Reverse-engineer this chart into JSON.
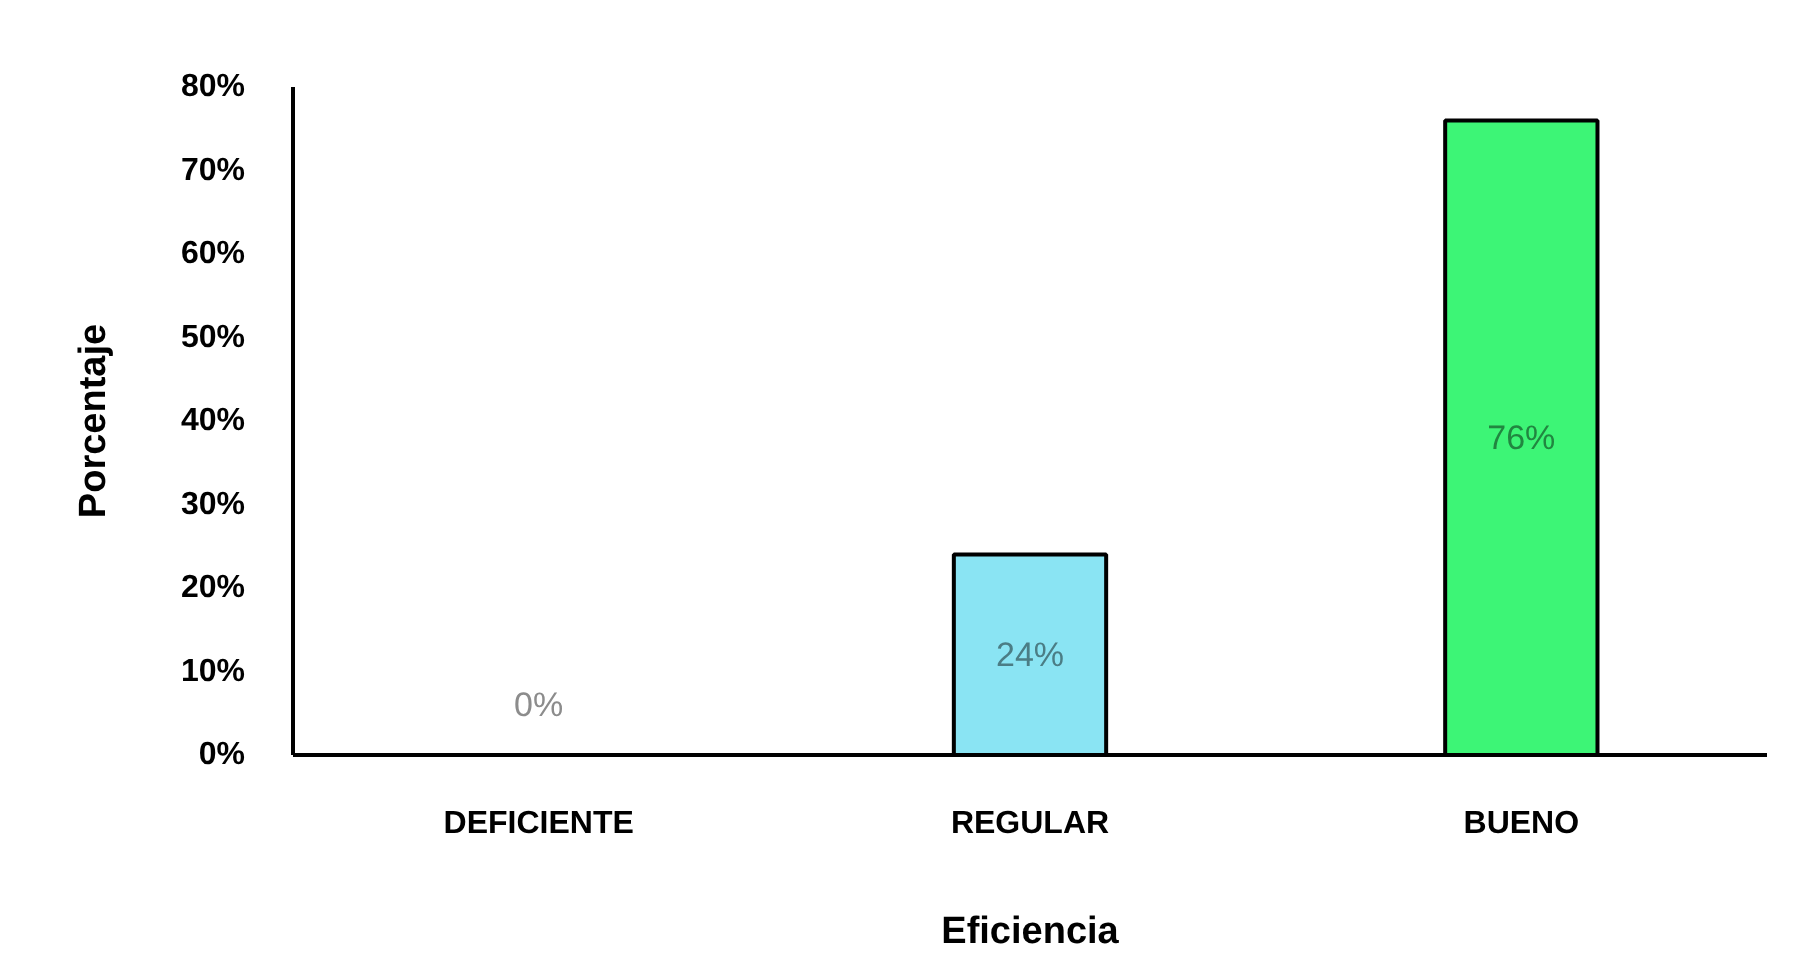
{
  "chart_data": {
    "type": "bar",
    "xlabel": "Eficiencia",
    "ylabel": "Porcentaje",
    "categories": [
      "DEFICIENTE",
      "REGULAR",
      "BUENO"
    ],
    "values": [
      0,
      24,
      76
    ],
    "colors": [
      null,
      "#8ae4f3",
      "#3df576"
    ],
    "value_labels": [
      "0%",
      "24%",
      "76%"
    ],
    "ylim": [
      0,
      80
    ],
    "yticks": [
      {
        "value": 0,
        "label": "0%"
      },
      {
        "value": 10,
        "label": "10%"
      },
      {
        "value": 20,
        "label": "20%"
      },
      {
        "value": 30,
        "label": "30%"
      },
      {
        "value": 40,
        "label": "40%"
      },
      {
        "value": 50,
        "label": "50%"
      },
      {
        "value": 60,
        "label": "60%"
      },
      {
        "value": 70,
        "label": "70%"
      },
      {
        "value": 80,
        "label": "80%"
      }
    ],
    "grid": false
  }
}
